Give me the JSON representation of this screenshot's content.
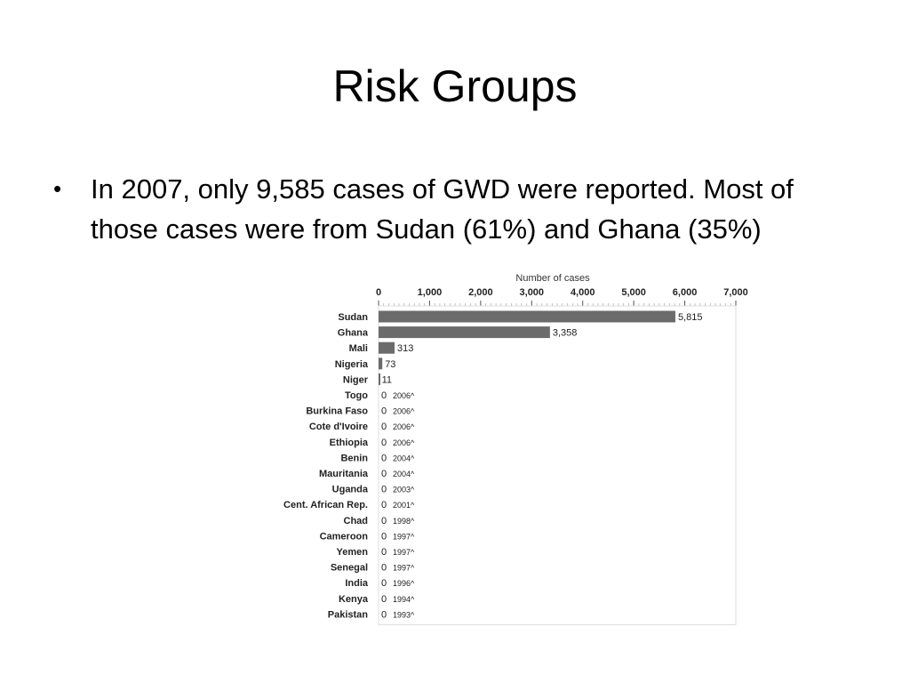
{
  "slide": {
    "title": "Risk Groups",
    "bullet": "In 2007, only 9,585 cases of GWD were reported. Most of those cases were from Sudan (61%) and Ghana (35%)"
  },
  "chart_data": {
    "type": "bar",
    "orientation": "horizontal",
    "xlabel": "Number of cases",
    "xlim": [
      0,
      7000
    ],
    "xticks": [
      0,
      1000,
      2000,
      3000,
      4000,
      5000,
      6000,
      7000
    ],
    "xtick_labels": [
      "0",
      "1,000",
      "2,000",
      "3,000",
      "4,000",
      "5,000",
      "6,000",
      "7,000"
    ],
    "categories": [
      "Sudan",
      "Ghana",
      "Mali",
      "Nigeria",
      "Niger",
      "Togo",
      "Burkina Faso",
      "Cote d'Ivoire",
      "Ethiopia",
      "Benin",
      "Mauritania",
      "Uganda",
      "Cent. African Rep.",
      "Chad",
      "Cameroon",
      "Yemen",
      "Senegal",
      "India",
      "Kenya",
      "Pakistan"
    ],
    "values": [
      5815,
      3358,
      313,
      73,
      11,
      0,
      0,
      0,
      0,
      0,
      0,
      0,
      0,
      0,
      0,
      0,
      0,
      0,
      0,
      0
    ],
    "value_labels": [
      "5,815",
      "3,358",
      "313",
      "73",
      "11",
      "0",
      "0",
      "0",
      "0",
      "0",
      "0",
      "0",
      "0",
      "0",
      "0",
      "0",
      "0",
      "0",
      "0",
      "0"
    ],
    "annotations": [
      "",
      "",
      "",
      "",
      "",
      "2006^",
      "2006^",
      "2006^",
      "2006^",
      "2004^",
      "2004^",
      "2003^",
      "2001^",
      "1998^",
      "1997^",
      "1997^",
      "1997^",
      "1996^",
      "1994^",
      "1993^"
    ],
    "bar_color": "#6b6b6b",
    "grid": false
  }
}
